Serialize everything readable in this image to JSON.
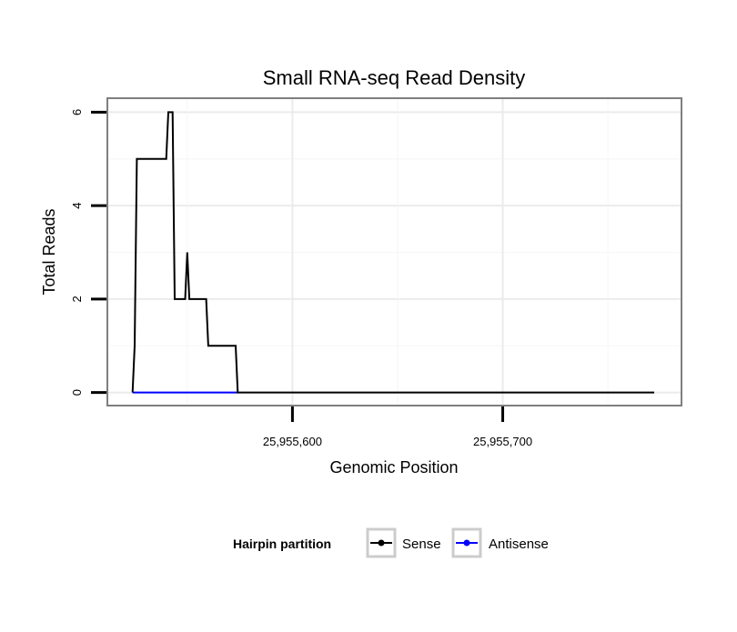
{
  "chart_data": {
    "type": "line",
    "title": "Small RNA-seq Read Density",
    "xlabel": "Genomic Position",
    "ylabel": "Total Reads",
    "xlim": [
      25955512,
      25955785
    ],
    "ylim": [
      -0.28,
      6.3
    ],
    "x_ticks": [
      25955600,
      25955700
    ],
    "x_tick_labels": [
      "25,955,600",
      "25,955,700"
    ],
    "y_ticks": [
      0,
      2,
      4,
      6
    ],
    "y_tick_labels": [
      "0",
      "2",
      "4",
      "6"
    ],
    "grid": true,
    "legend_position": "bottom",
    "legend_title": "Hairpin partition",
    "series": [
      {
        "name": "Sense",
        "color": "#000000",
        "x": [
          25955524,
          25955525,
          25955526,
          25955540,
          25955541,
          25955543,
          25955544,
          25955549,
          25955550,
          25955551,
          25955559,
          25955560,
          25955573,
          25955574,
          25955772
        ],
        "y": [
          0,
          1,
          5,
          5,
          6,
          6,
          2,
          2,
          3,
          2,
          2,
          1,
          1,
          0,
          0
        ]
      },
      {
        "name": "Antisense",
        "color": "#0000ff",
        "x": [
          25955524,
          25955574
        ],
        "y": [
          0,
          0
        ]
      }
    ]
  }
}
